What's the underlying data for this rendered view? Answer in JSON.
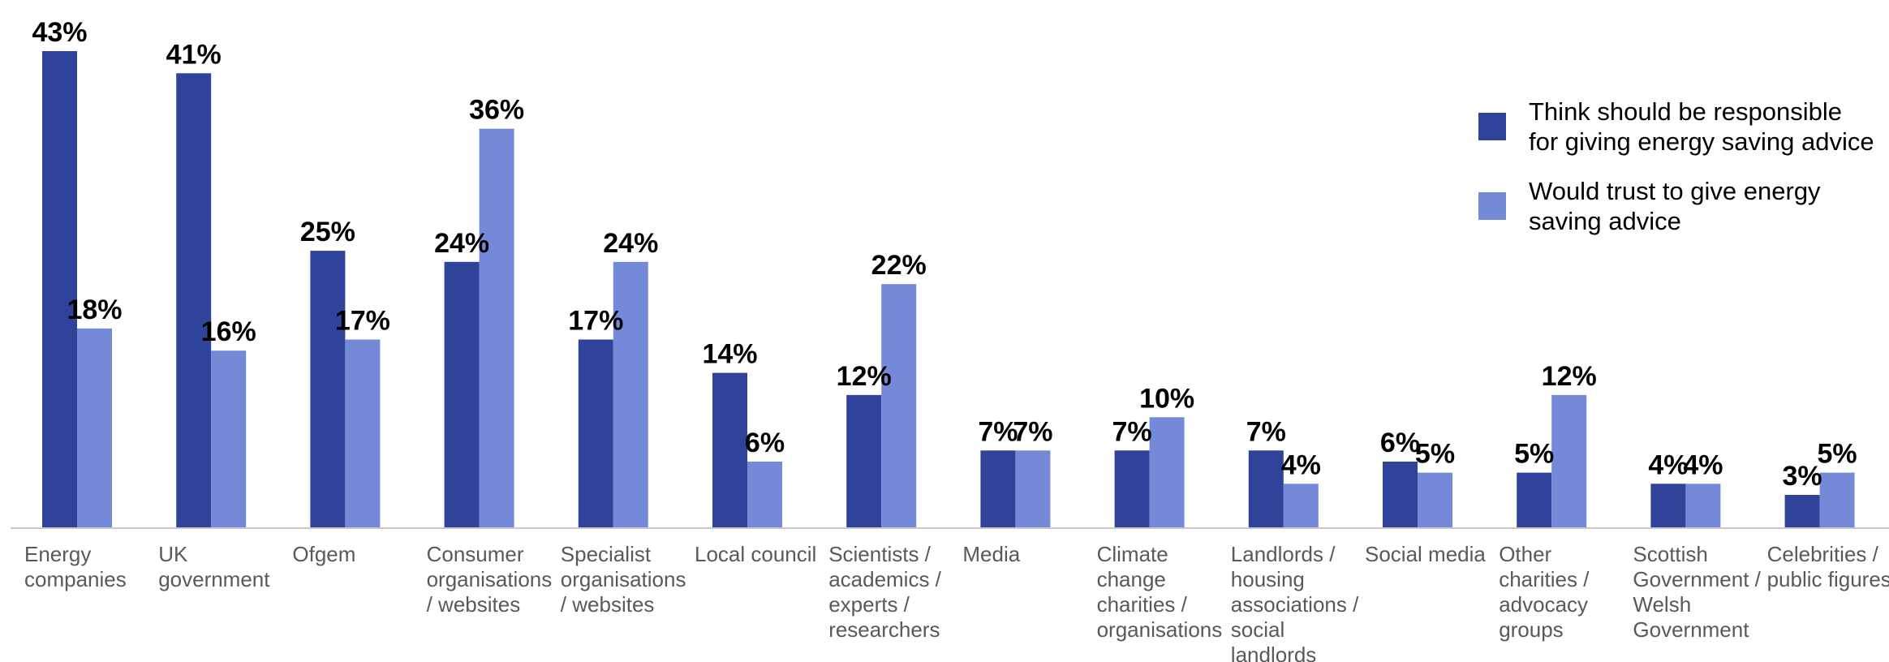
{
  "chart_data": {
    "type": "bar",
    "title": "",
    "xlabel": "",
    "ylabel": "",
    "ylim": [
      0,
      43
    ],
    "grid": false,
    "legend_position": "top-right",
    "value_suffix": "%",
    "categories": [
      [
        "Energy",
        "companies"
      ],
      [
        "UK",
        "government"
      ],
      [
        "Ofgem"
      ],
      [
        "Consumer",
        "organisations",
        "/ websites"
      ],
      [
        "Specialist",
        "organisations",
        "/ websites"
      ],
      [
        "Local council"
      ],
      [
        "Scientists /",
        "academics /",
        "experts /",
        "researchers"
      ],
      [
        "Media"
      ],
      [
        "Climate",
        "change",
        "charities /",
        "organisations"
      ],
      [
        "Landlords /",
        "housing",
        "associations /",
        "social",
        "landlords"
      ],
      [
        "Social media"
      ],
      [
        "Other",
        "charities /",
        "advocacy",
        "groups"
      ],
      [
        "Scottish",
        "Government /",
        "Welsh",
        "Government"
      ],
      [
        "Celebrities /",
        "public figures"
      ]
    ],
    "series": [
      {
        "name": [
          "Think should be responsible",
          "for giving energy saving advice"
        ],
        "color": "#2e4399",
        "values": [
          43,
          41,
          25,
          24,
          17,
          14,
          12,
          7,
          7,
          7,
          6,
          5,
          4,
          3
        ]
      },
      {
        "name": [
          "Would trust to give energy",
          "saving advice"
        ],
        "color": "#7489d8",
        "values": [
          18,
          16,
          17,
          36,
          24,
          6,
          22,
          7,
          10,
          4,
          5,
          12,
          4,
          5
        ]
      }
    ],
    "axis_color": "#c8c8c8"
  }
}
